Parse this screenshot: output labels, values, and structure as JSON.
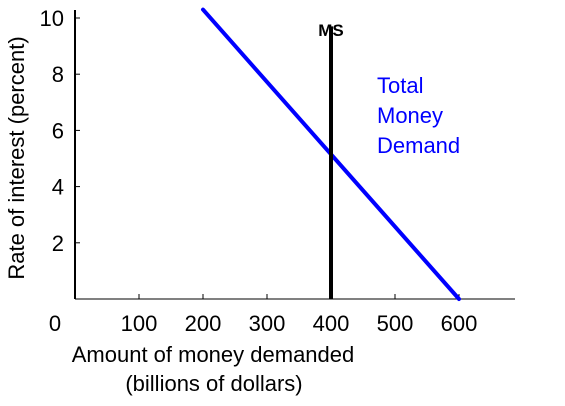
{
  "chart_data": {
    "type": "line",
    "xlabel": "Amount of money demanded",
    "xlabel_line2": "(billions of dollars)",
    "ylabel": "Rate of interest (percent)",
    "x_ticks": [
      "0",
      "100",
      "200",
      "300",
      "400",
      "500",
      "600"
    ],
    "y_ticks": [
      "2",
      "4",
      "6",
      "8",
      "10"
    ],
    "xlim": [
      0,
      600
    ],
    "ylim": [
      0,
      10
    ],
    "grid": false,
    "series": [
      {
        "name": "Total Money Demand",
        "name_lines": [
          "Total",
          "Money",
          "Demand"
        ],
        "color": "#0000ff",
        "x": [
          200,
          600
        ],
        "y": [
          10.3,
          0
        ]
      },
      {
        "name": "MS",
        "color": "#000000",
        "x": [
          400,
          400
        ],
        "y": [
          0,
          9.7
        ]
      }
    ]
  }
}
